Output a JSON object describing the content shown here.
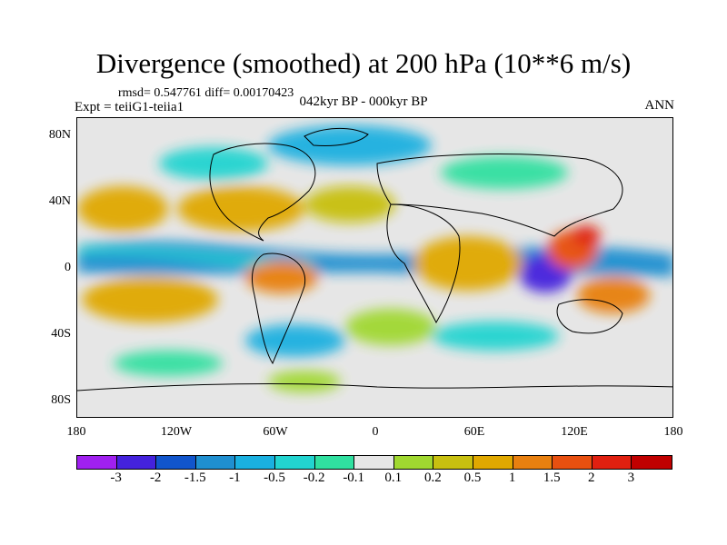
{
  "title": "Divergence (smoothed) at 200 hPa (10**6 m/s)",
  "rmsd_text": "rmsd= 0.547761 diff= 0.00170423",
  "expt_text": "Expt = teiiG1-teiia1",
  "period_text": "042kyr BP - 000kyr BP",
  "season": "ANN",
  "lat_labels": [
    "80N",
    "40N",
    "0",
    "40S",
    "80S"
  ],
  "lon_labels": [
    "180",
    "120W",
    "60W",
    "0",
    "60E",
    "120E",
    "180"
  ],
  "colorbar": {
    "labels": [
      "-3",
      "-2",
      "-1.5",
      "-1",
      "-0.5",
      "-0.2",
      "-0.1",
      "0.1",
      "0.2",
      "0.5",
      "1",
      "1.5",
      "2",
      "3"
    ],
    "colors": [
      "#a020f0",
      "#4422dd",
      "#1155cc",
      "#1f8fd0",
      "#1ab0e0",
      "#22d4d0",
      "#30e0a0",
      "#e6e6e6",
      "#a0d830",
      "#c8c010",
      "#e0a800",
      "#e88010",
      "#e85010",
      "#e02010",
      "#c00000"
    ]
  }
}
